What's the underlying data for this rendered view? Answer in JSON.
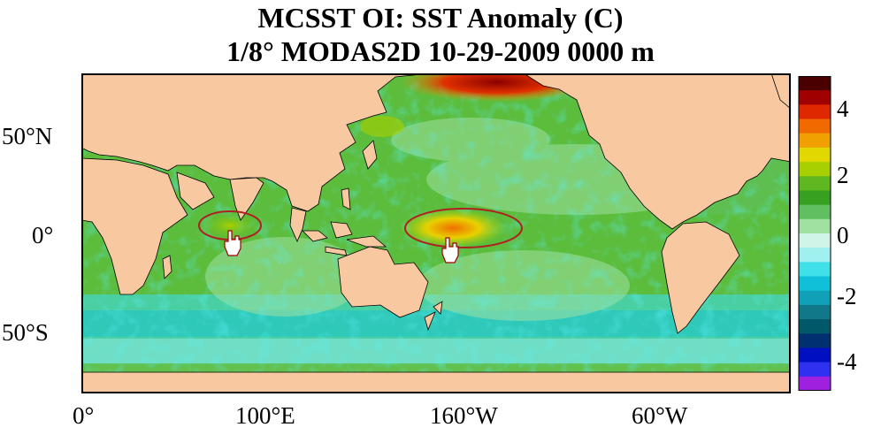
{
  "title_line1": "MCSST OI:  SST Anomaly (C)",
  "title_line2": "1/8° MODAS2D 10-29-2009 0000 m",
  "lat_labels": [
    "50°N",
    "0°",
    "50°S"
  ],
  "lon_labels": [
    "0°",
    "100°E",
    "160°W",
    "60°W"
  ],
  "colorbar": {
    "tick_labels": [
      "4",
      "2",
      "0",
      "-2",
      "-4"
    ],
    "range": [
      -5,
      5
    ],
    "colors": [
      "#4a0000",
      "#a00000",
      "#e02800",
      "#f06a00",
      "#f0a000",
      "#e0d800",
      "#a8d000",
      "#60b820",
      "#38a020",
      "#60c060",
      "#a0e0a0",
      "#d0f4e8",
      "#a0f0f0",
      "#40e0e8",
      "#10c0d8",
      "#10a0b8",
      "#107888",
      "#005868",
      "#003070",
      "#0010c0",
      "#3030f0",
      "#a020e0"
    ]
  },
  "colors": {
    "land": "#f8c8a0",
    "ocean_base": "#5cbc3c",
    "highlight_ellipse": "#b02020"
  },
  "annotations": {
    "highlights": [
      "indian-ocean-equatorial-anomaly",
      "central-pacific-warm-anomaly"
    ],
    "cursor_icon": "hand-pointer-icon"
  }
}
